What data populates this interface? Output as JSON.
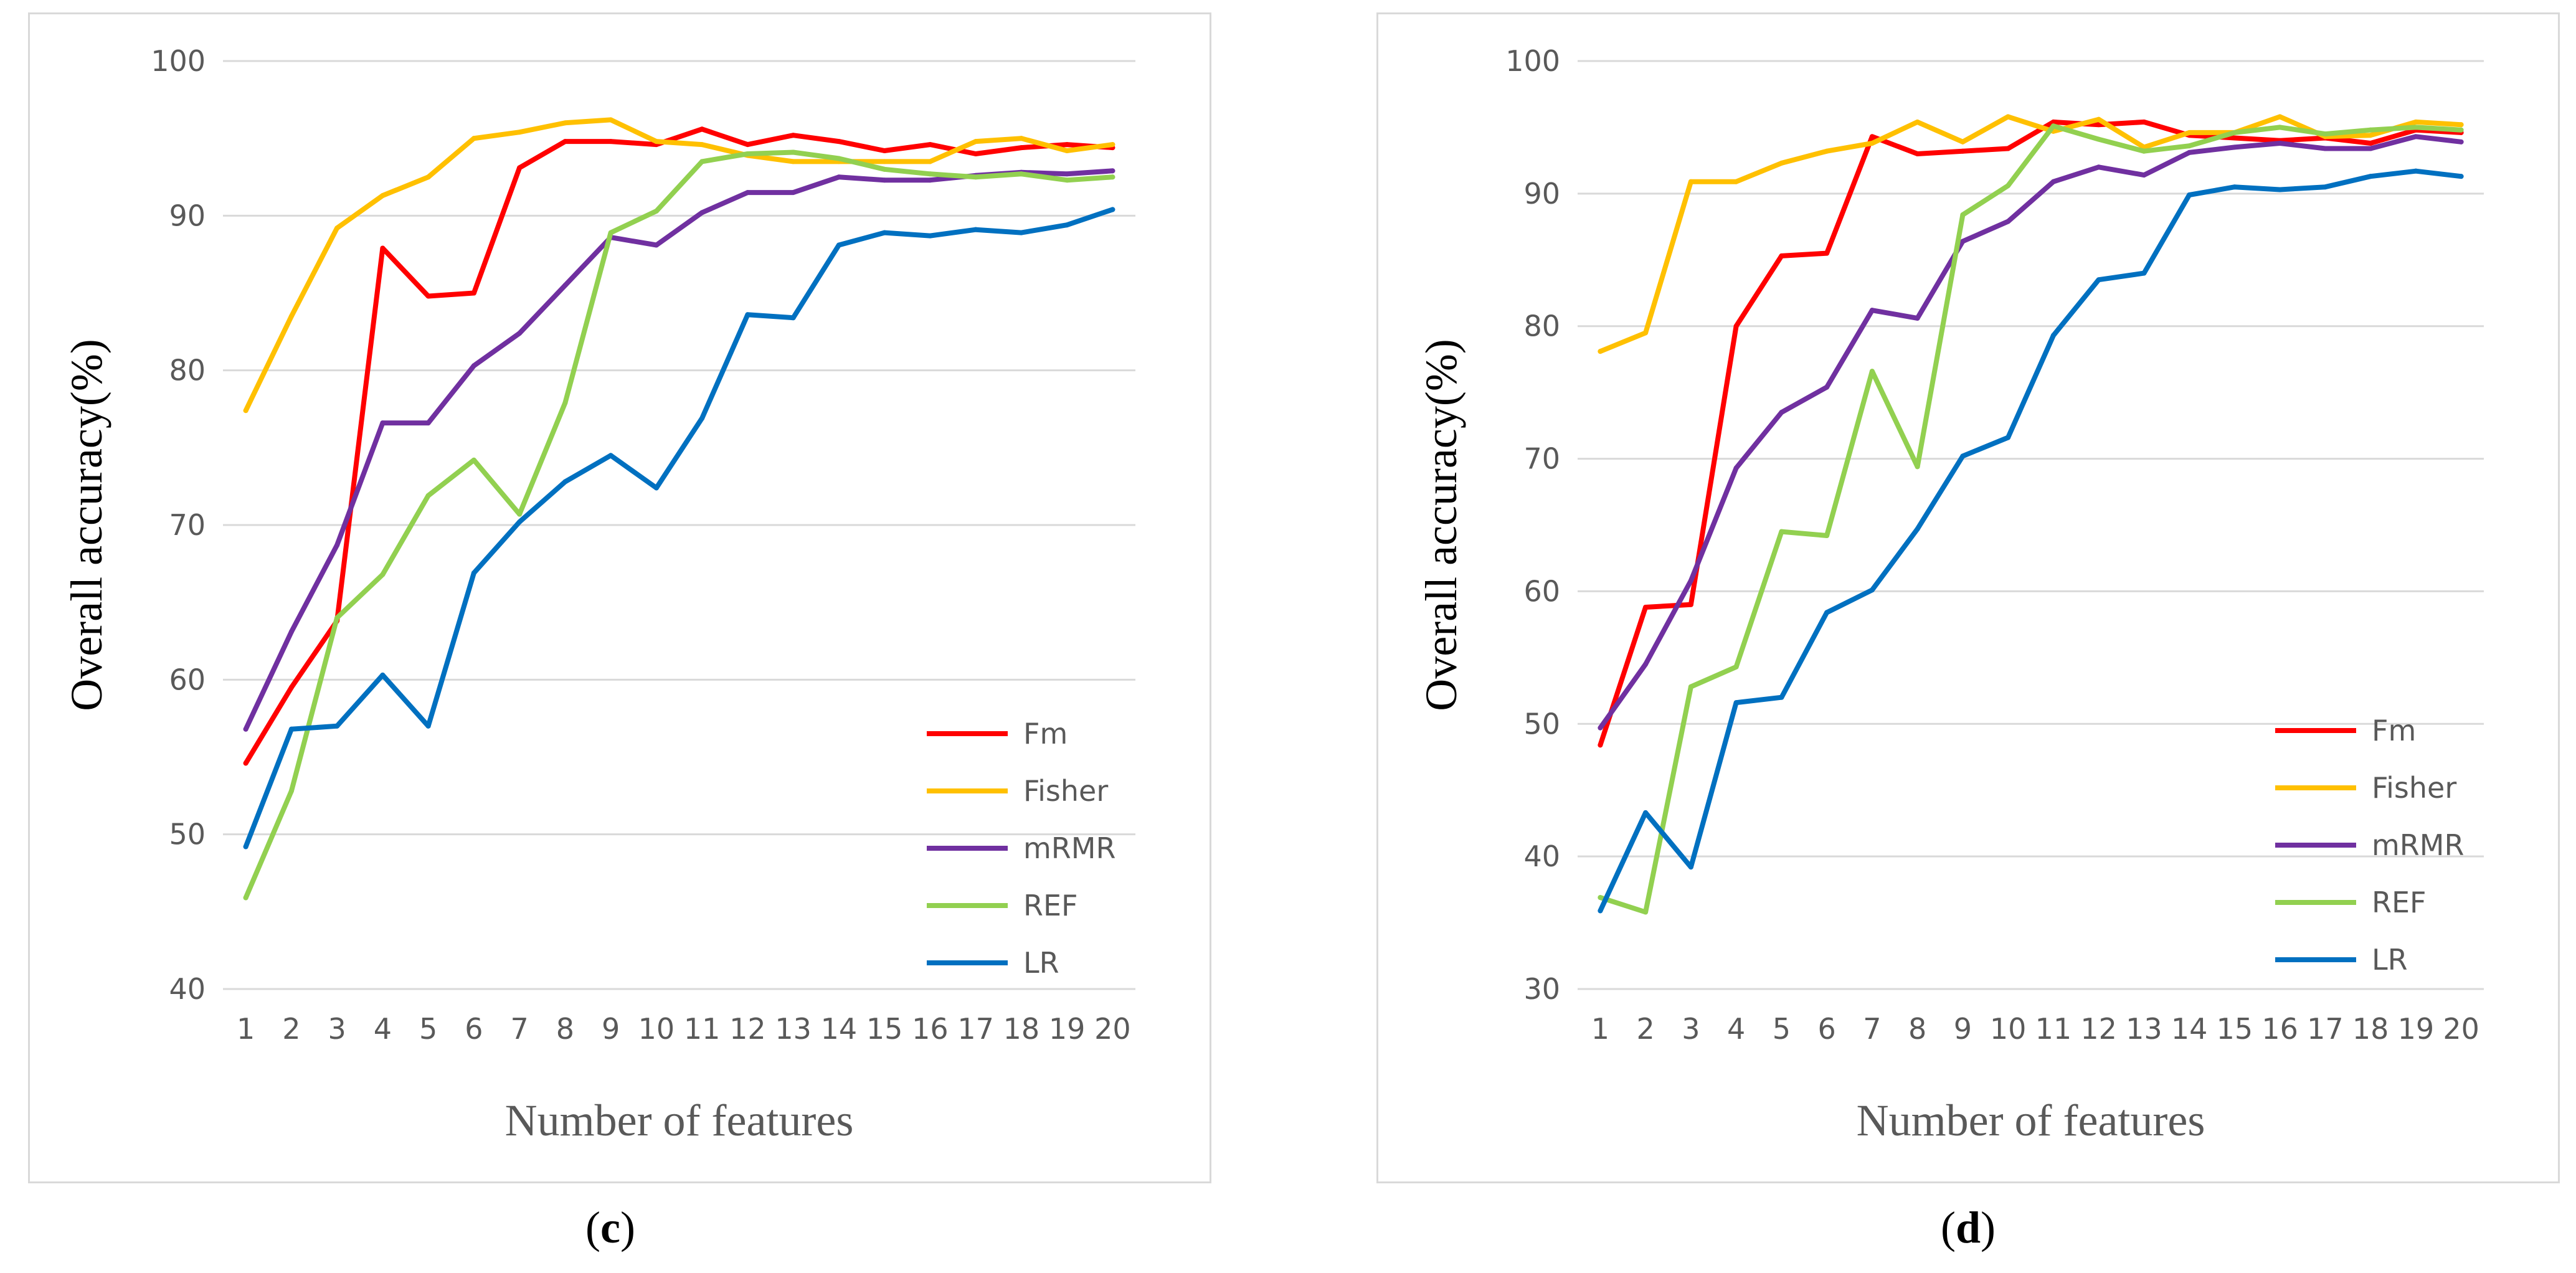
{
  "chart_data": [
    {
      "type": "line",
      "panel_label": "c",
      "xlabel": "Number of features",
      "ylabel": "Overall accuracy(%)",
      "x": [
        1,
        2,
        3,
        4,
        5,
        6,
        7,
        8,
        9,
        10,
        11,
        12,
        13,
        14,
        15,
        16,
        17,
        18,
        19,
        20
      ],
      "x_tick_labels": [
        "1",
        "2",
        "3",
        "4",
        "5",
        "6",
        "7",
        "8",
        "9",
        "10",
        "11",
        "12",
        "13",
        "14",
        "15",
        "16",
        "17",
        "18",
        "19",
        "20"
      ],
      "ylim": [
        40,
        100
      ],
      "y_ticks": [
        40,
        50,
        60,
        70,
        80,
        90,
        100
      ],
      "grid": true,
      "legend_position": "bottom-right",
      "series": [
        {
          "name": "Fm",
          "color": "#ff0000",
          "values": [
            54.6,
            59.5,
            63.8,
            87.9,
            84.8,
            85.0,
            93.1,
            94.8,
            94.8,
            94.6,
            95.6,
            94.6,
            95.2,
            94.8,
            94.2,
            94.6,
            94.0,
            94.4,
            94.6,
            94.4
          ]
        },
        {
          "name": "Fisher",
          "color": "#ffc000",
          "values": [
            77.4,
            83.5,
            89.2,
            91.3,
            92.5,
            95.0,
            95.4,
            96.0,
            96.2,
            94.8,
            94.6,
            93.9,
            93.5,
            93.5,
            93.5,
            93.5,
            94.8,
            95.0,
            94.2,
            94.6
          ]
        },
        {
          "name": "mRMR",
          "color": "#7030a0",
          "values": [
            56.8,
            63.1,
            68.7,
            76.6,
            76.6,
            80.3,
            82.4,
            85.5,
            88.6,
            88.1,
            90.2,
            91.5,
            91.5,
            92.5,
            92.3,
            92.3,
            92.6,
            92.8,
            92.7,
            92.9
          ]
        },
        {
          "name": "REF",
          "color": "#92d050",
          "values": [
            45.9,
            52.8,
            64.0,
            66.8,
            71.9,
            74.2,
            70.7,
            77.9,
            88.9,
            90.3,
            93.5,
            94.0,
            94.1,
            93.7,
            93.0,
            92.7,
            92.5,
            92.7,
            92.3,
            92.5
          ]
        },
        {
          "name": "LR",
          "color": "#0070c0",
          "values": [
            49.2,
            56.8,
            57.0,
            60.3,
            57.0,
            66.9,
            70.2,
            72.8,
            74.5,
            72.4,
            76.9,
            83.6,
            83.4,
            88.1,
            88.9,
            88.7,
            89.1,
            88.9,
            89.4,
            90.4
          ]
        }
      ]
    },
    {
      "type": "line",
      "panel_label": "d",
      "xlabel": "Number of features",
      "ylabel": "Overall accuracy(%)",
      "x": [
        1,
        2,
        3,
        4,
        5,
        6,
        7,
        8,
        9,
        10,
        11,
        12,
        13,
        14,
        15,
        16,
        17,
        18,
        19,
        20
      ],
      "x_tick_labels": [
        "1",
        "2",
        "3",
        "4",
        "5",
        "6",
        "7",
        "8",
        "9",
        "10",
        "11",
        "12",
        "13",
        "14",
        "15",
        "16",
        "17",
        "18",
        "19",
        "20"
      ],
      "ylim": [
        30,
        100
      ],
      "y_ticks": [
        30,
        40,
        50,
        60,
        70,
        80,
        90,
        100
      ],
      "grid": true,
      "legend_position": "bottom-right",
      "series": [
        {
          "name": "Fm",
          "color": "#ff0000",
          "values": [
            48.4,
            58.8,
            59.0,
            80.0,
            85.3,
            85.5,
            94.3,
            93.0,
            93.2,
            93.4,
            95.4,
            95.2,
            95.4,
            94.4,
            94.2,
            94.0,
            94.2,
            93.8,
            94.8,
            94.6
          ]
        },
        {
          "name": "Fisher",
          "color": "#ffc000",
          "values": [
            78.1,
            79.5,
            90.9,
            90.9,
            92.3,
            93.2,
            93.8,
            95.4,
            93.9,
            95.8,
            94.7,
            95.6,
            93.5,
            94.6,
            94.6,
            95.8,
            94.3,
            94.4,
            95.4,
            95.2
          ]
        },
        {
          "name": "mRMR",
          "color": "#7030a0",
          "values": [
            49.7,
            54.5,
            60.8,
            69.3,
            73.5,
            75.4,
            81.2,
            80.6,
            86.4,
            87.9,
            90.9,
            92.0,
            91.4,
            93.1,
            93.5,
            93.8,
            93.4,
            93.4,
            94.3,
            93.9
          ]
        },
        {
          "name": "REF",
          "color": "#92d050",
          "values": [
            36.9,
            35.8,
            52.8,
            54.3,
            64.5,
            64.2,
            76.6,
            69.4,
            88.4,
            90.6,
            95.1,
            94.1,
            93.2,
            93.6,
            94.6,
            95.0,
            94.5,
            94.8,
            95.0,
            94.8
          ]
        },
        {
          "name": "LR",
          "color": "#0070c0",
          "values": [
            35.9,
            43.3,
            39.2,
            51.6,
            52.0,
            58.4,
            60.1,
            64.7,
            70.2,
            71.6,
            79.3,
            83.5,
            84.0,
            89.9,
            90.5,
            90.3,
            90.5,
            91.3,
            91.7,
            91.3
          ]
        }
      ]
    }
  ]
}
